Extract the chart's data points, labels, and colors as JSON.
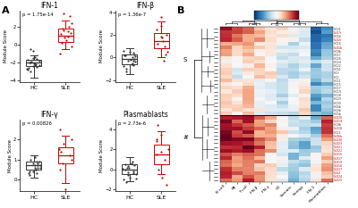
{
  "panel_A_title": "A",
  "panel_B_title": "B",
  "box_plots": [
    {
      "title": "IFN-1",
      "pvalue": "p = 1.75e-14",
      "hc_median": -2.0,
      "hc_q1": -2.4,
      "hc_q3": -1.7,
      "hc_whisker_low": -3.7,
      "hc_whisker_high": -1.2,
      "hc_points": [
        -2.2,
        -2.5,
        -1.9,
        -2.1,
        -2.3,
        -1.8,
        -2.6,
        -2.0,
        -1.7,
        -2.4,
        -2.8,
        -1.5,
        -2.2,
        -2.0,
        -1.6,
        -2.3,
        -2.7,
        -1.4,
        -3.0,
        -0.7,
        -0.5
      ],
      "sle_median": 1.0,
      "sle_q1": 0.3,
      "sle_q3": 1.8,
      "sle_whisker_low": -0.5,
      "sle_whisker_high": 2.7,
      "sle_points": [
        1.5,
        0.8,
        1.2,
        0.5,
        2.0,
        1.8,
        0.2,
        1.6,
        2.4,
        -0.2,
        0.9,
        1.3,
        3.2,
        3.5,
        -1.0
      ],
      "ylabel": "Module Score",
      "ylim": [
        -4.2,
        3.8
      ],
      "yticks": [
        -4,
        -2,
        0,
        2
      ]
    },
    {
      "title": "IFN-β",
      "pvalue": "p = 1.36e-7",
      "hc_median": -0.1,
      "hc_q1": -0.6,
      "hc_q3": 0.3,
      "hc_whisker_low": -1.5,
      "hc_whisker_high": 0.8,
      "hc_points": [
        -0.2,
        0.1,
        -0.4,
        0.3,
        -0.8,
        0.0,
        -0.3,
        0.5,
        -0.6,
        0.2,
        -1.0,
        -0.5,
        0.4,
        -0.1,
        -0.7,
        0.6,
        0.2,
        -0.3,
        -1.2
      ],
      "sle_median": 1.5,
      "sle_q1": 0.8,
      "sle_q3": 2.2,
      "sle_whisker_low": 0.0,
      "sle_whisker_high": 3.2,
      "sle_points": [
        1.2,
        2.0,
        0.5,
        1.8,
        2.5,
        1.0,
        2.8,
        1.5,
        0.3,
        1.9,
        3.6,
        -0.3
      ],
      "ylabel": "Module Score",
      "ylim": [
        -2.2,
        4.2
      ],
      "yticks": [
        -2,
        0,
        2,
        4
      ]
    },
    {
      "title": "IFN-γ",
      "pvalue": "p = 0.00826",
      "hc_median": 0.7,
      "hc_q1": 0.5,
      "hc_q3": 0.9,
      "hc_whisker_low": 0.1,
      "hc_whisker_high": 1.2,
      "hc_points": [
        0.6,
        0.8,
        0.4,
        0.7,
        0.5,
        0.9,
        0.3,
        0.7,
        1.0,
        0.6,
        0.8,
        0.5,
        0.4,
        0.7,
        0.9,
        0.2,
        0.6,
        1.1,
        0.3
      ],
      "sle_median": 1.2,
      "sle_q1": 0.8,
      "sle_q3": 1.6,
      "sle_whisker_low": -0.2,
      "sle_whisker_high": 2.2,
      "sle_points": [
        1.0,
        1.5,
        2.5,
        0.5,
        1.8,
        1.2,
        2.0,
        0.8,
        -0.5,
        1.4
      ],
      "ylabel": "Module Score",
      "ylim": [
        -0.6,
        3.0
      ],
      "yticks": [
        0.0,
        1.0,
        2.0
      ]
    },
    {
      "title": "Plasmablasts",
      "pvalue": "p = 2.73e-6",
      "hc_median": 0.0,
      "hc_q1": -0.5,
      "hc_q3": 0.5,
      "hc_whisker_low": -1.2,
      "hc_whisker_high": 1.2,
      "hc_points": [
        0.2,
        -0.3,
        0.5,
        -0.8,
        0.1,
        -0.5,
        0.4,
        -0.2,
        0.8,
        -1.0,
        0.3,
        -0.6,
        0.0,
        -0.4,
        0.6,
        -0.9,
        0.2,
        -1.3
      ],
      "sle_median": 1.5,
      "sle_q1": 0.5,
      "sle_q3": 2.5,
      "sle_whisker_low": -0.5,
      "sle_whisker_high": 3.8,
      "sle_points": [
        1.0,
        2.0,
        0.0,
        3.0,
        1.5,
        2.8,
        -0.8,
        1.8,
        3.5,
        4.5,
        -1.5
      ],
      "ylabel": "Module Score",
      "ylim": [
        -2.2,
        5.0
      ],
      "yticks": [
        -2,
        0,
        2,
        4
      ]
    }
  ],
  "heatmap": {
    "colorbar_ticks": [
      -4,
      0,
      4
    ],
    "col_labels": [
      "B cell",
      "PB",
      "T cell",
      "IFN-β",
      "IFN-γ",
      "GC",
      "Somatic",
      "Energy",
      "IFN-1",
      "Plasmablast"
    ],
    "row_labels_top": [
      "HC21",
      "SLE7r",
      "HC1b",
      "SLE2r",
      "HC14",
      "SLE1b",
      "HC8b",
      "HC17",
      "HC26",
      "HC24",
      "HC22",
      "HC51",
      "HC3",
      "HC2",
      "HC11",
      "HC15",
      "HC17",
      "HC19",
      "HC28",
      "HC29",
      "HC30",
      "HC6b",
      "HC4b",
      "HC5b"
    ],
    "row_labels_bottom": [
      "SLE20",
      "SLE19",
      "HC9b",
      "SLE18",
      "HC11",
      "SLE6b",
      "SLE30",
      "SLE23",
      "SLE21",
      "SLE22",
      "SLE15",
      "SLE17",
      "SLE19",
      "SLE10",
      "SLE27",
      "SLE4",
      "SLE24",
      "SLE25"
    ],
    "cluster_label_top": "#",
    "cluster_label_bottom": "S",
    "cmap": "RdBu_r",
    "vmin": -4,
    "vmax": 4
  },
  "colors": {
    "hc_box": "#333333",
    "sle_box": "#cc0000",
    "background": "#ffffff"
  },
  "layout": {
    "fig_width": 4.0,
    "fig_height": 2.33,
    "dpi": 100
  }
}
